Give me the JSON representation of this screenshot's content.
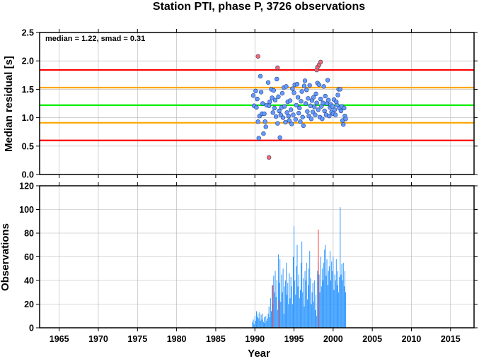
{
  "chart_data": [
    {
      "type": "scatter",
      "title": "Station PTI, phase P, 3726 observations",
      "xlabel": "",
      "ylabel": "Median residual [s]",
      "xlim": [
        1962.5,
        2018
      ],
      "ylim": [
        0,
        2.5
      ],
      "x_ticks": [
        1965,
        1970,
        1975,
        1980,
        1985,
        1990,
        1995,
        2000,
        2005,
        2010,
        2015
      ],
      "y_ticks": [
        0.0,
        0.5,
        1.0,
        1.5,
        2.0,
        2.5
      ],
      "y_tick_labels": [
        "0.0",
        "0.5",
        "1.0",
        "1.5",
        "2.0",
        "2.5"
      ],
      "grid": true,
      "annotation": "median = 1.22, smad = 0.31",
      "reference_lines": [
        {
          "y": 1.84,
          "color": "#ff0000"
        },
        {
          "y": 1.53,
          "color": "#ffa500"
        },
        {
          "y": 1.22,
          "color": "#00ee00"
        },
        {
          "y": 0.91,
          "color": "#ffa500"
        },
        {
          "y": 0.6,
          "color": "#ff0000"
        }
      ],
      "series": [
        {
          "color": "#6699ff",
          "points": [
            [
              1989.8,
              1.39
            ],
            [
              1989.9,
              1.21
            ],
            [
              1990.1,
              1.47
            ],
            [
              1990.2,
              1.18
            ],
            [
              1990.3,
              1.33
            ],
            [
              1990.4,
              0.93
            ],
            [
              1990.5,
              0.64
            ],
            [
              1990.6,
              1.03
            ],
            [
              1990.7,
              1.73
            ],
            [
              1990.8,
              1.45
            ],
            [
              1990.9,
              1.07
            ],
            [
              1991.0,
              1.25
            ],
            [
              1991.1,
              0.72
            ],
            [
              1991.2,
              1.07
            ],
            [
              1991.3,
              0.93
            ],
            [
              1991.4,
              0.84
            ],
            [
              1991.5,
              1.22
            ],
            [
              1991.7,
              1.62
            ],
            [
              1991.8,
              1.21
            ],
            [
              1991.9,
              1.28
            ],
            [
              1992.1,
              1.5
            ],
            [
              1992.2,
              1.35
            ],
            [
              1992.3,
              1.09
            ],
            [
              1992.4,
              1.48
            ],
            [
              1992.5,
              1.17
            ],
            [
              1992.6,
              1.31
            ],
            [
              1992.7,
              1.02
            ],
            [
              1992.8,
              1.68
            ],
            [
              1992.9,
              0.9
            ],
            [
              1993.0,
              1.37
            ],
            [
              1993.1,
              1.12
            ],
            [
              1993.2,
              0.65
            ],
            [
              1993.3,
              1.05
            ],
            [
              1993.4,
              1.18
            ],
            [
              1993.5,
              1.43
            ],
            [
              1993.6,
              1.0
            ],
            [
              1993.7,
              1.53
            ],
            [
              1993.8,
              1.2
            ],
            [
              1993.9,
              0.92
            ],
            [
              1994.0,
              1.55
            ],
            [
              1994.1,
              1.09
            ],
            [
              1994.2,
              1.28
            ],
            [
              1994.3,
              1.03
            ],
            [
              1994.4,
              0.95
            ],
            [
              1994.5,
              1.3
            ],
            [
              1994.6,
              1.14
            ],
            [
              1994.7,
              0.89
            ],
            [
              1994.8,
              1.51
            ],
            [
              1994.9,
              1.05
            ],
            [
              1995.0,
              1.44
            ],
            [
              1995.1,
              1.58
            ],
            [
              1995.2,
              0.97
            ],
            [
              1995.3,
              1.22
            ],
            [
              1995.4,
              1.59
            ],
            [
              1995.5,
              1.36
            ],
            [
              1995.6,
              1.08
            ],
            [
              1995.7,
              1.17
            ],
            [
              1995.8,
              0.93
            ],
            [
              1995.9,
              1.29
            ],
            [
              1996.0,
              1.46
            ],
            [
              1996.1,
              1.01
            ],
            [
              1996.2,
              0.86
            ],
            [
              1996.3,
              1.56
            ],
            [
              1996.4,
              1.65
            ],
            [
              1996.5,
              1.25
            ],
            [
              1996.6,
              1.49
            ],
            [
              1996.7,
              1.11
            ],
            [
              1996.8,
              1.34
            ],
            [
              1996.9,
              1.03
            ],
            [
              1997.0,
              1.57
            ],
            [
              1997.1,
              1.21
            ],
            [
              1997.2,
              0.98
            ],
            [
              1997.3,
              1.3
            ],
            [
              1997.4,
              1.1
            ],
            [
              1997.5,
              1.36
            ],
            [
              1997.6,
              1.19
            ],
            [
              1997.7,
              1.05
            ],
            [
              1997.8,
              1.42
            ],
            [
              1997.9,
              1.26
            ],
            [
              1998.0,
              1.61
            ],
            [
              1998.1,
              1.14
            ],
            [
              1998.2,
              1.58
            ],
            [
              1998.3,
              1.01
            ],
            [
              1998.4,
              1.33
            ],
            [
              1998.5,
              1.2
            ],
            [
              1998.6,
              0.98
            ],
            [
              1998.7,
              1.26
            ],
            [
              1998.8,
              1.55
            ],
            [
              1998.9,
              1.12
            ],
            [
              1999.0,
              1.38
            ],
            [
              1999.1,
              1.05
            ],
            [
              1999.2,
              1.25
            ],
            [
              1999.3,
              1.66
            ],
            [
              1999.4,
              1.31
            ],
            [
              1999.5,
              1.03
            ],
            [
              1999.6,
              1.18
            ],
            [
              1999.7,
              1.23
            ],
            [
              1999.8,
              1.1
            ],
            [
              1999.9,
              1.2
            ],
            [
              2000.0,
              1.07
            ],
            [
              2000.1,
              1.32
            ],
            [
              2000.2,
              1.14
            ],
            [
              2000.3,
              1.05
            ],
            [
              2000.4,
              1.28
            ],
            [
              2000.5,
              1.22
            ],
            [
              2000.6,
              1.4
            ],
            [
              2000.7,
              1.5
            ],
            [
              2000.8,
              1.17
            ],
            [
              2000.9,
              1.5
            ],
            [
              2001.0,
              1.12
            ],
            [
              2001.1,
              1.2
            ],
            [
              2001.2,
              0.95
            ],
            [
              2001.3,
              0.88
            ],
            [
              2001.4,
              1.17
            ],
            [
              2001.5,
              1.03
            ],
            [
              2001.6,
              0.98
            ]
          ]
        },
        {
          "color": "#ff6666",
          "points": [
            [
              1990.4,
              2.08
            ],
            [
              1991.8,
              0.3
            ],
            [
              1992.9,
              1.88
            ],
            [
              1997.9,
              1.84
            ],
            [
              1998.0,
              1.89
            ],
            [
              1998.2,
              1.93
            ],
            [
              1998.4,
              1.98
            ]
          ]
        }
      ]
    },
    {
      "type": "bar",
      "title": "",
      "xlabel": "Year",
      "ylabel": "Observations",
      "xlim": [
        1962.5,
        2018
      ],
      "ylim": [
        0,
        120
      ],
      "x_ticks": [
        1965,
        1970,
        1975,
        1980,
        1985,
        1990,
        1995,
        2000,
        2005,
        2010,
        2015
      ],
      "y_ticks": [
        0,
        20,
        40,
        60,
        80,
        100,
        120
      ],
      "grid": true,
      "bar_width_years": 0.085,
      "series": [
        {
          "color": "#3399ff",
          "x": [
            1989.7,
            1989.8,
            1989.9,
            1990.0,
            1990.1,
            1990.2,
            1990.3,
            1990.4,
            1990.5,
            1990.6,
            1990.7,
            1990.8,
            1990.9,
            1991.0,
            1991.1,
            1991.2,
            1991.3,
            1991.4,
            1991.5,
            1991.6,
            1991.7,
            1991.8,
            1991.9,
            1992.0,
            1992.1,
            1992.2,
            1992.3,
            1992.4,
            1992.5,
            1992.6,
            1992.7,
            1992.8,
            1992.9,
            1993.0,
            1993.1,
            1993.2,
            1993.3,
            1993.4,
            1993.5,
            1993.6,
            1993.7,
            1993.8,
            1993.9,
            1994.0,
            1994.1,
            1994.2,
            1994.3,
            1994.4,
            1994.5,
            1994.6,
            1994.7,
            1994.8,
            1994.9,
            1995.0,
            1995.1,
            1995.2,
            1995.3,
            1995.4,
            1995.5,
            1995.6,
            1995.7,
            1995.8,
            1995.9,
            1996.0,
            1996.1,
            1996.2,
            1996.3,
            1996.4,
            1996.5,
            1996.6,
            1996.7,
            1996.8,
            1996.9,
            1997.0,
            1997.1,
            1997.2,
            1997.3,
            1997.4,
            1997.5,
            1997.6,
            1997.7,
            1997.8,
            1997.9,
            1998.0,
            1998.1,
            1998.2,
            1998.3,
            1998.4,
            1998.5,
            1998.6,
            1998.7,
            1998.8,
            1998.9,
            1999.0,
            1999.1,
            1999.2,
            1999.3,
            1999.4,
            1999.5,
            1999.6,
            1999.7,
            1999.8,
            1999.9,
            2000.0,
            2000.1,
            2000.2,
            2000.3,
            2000.4,
            2000.5,
            2000.6,
            2000.7,
            2000.8,
            2000.9,
            2001.0,
            2001.1,
            2001.2,
            2001.3,
            2001.4,
            2001.5,
            2001.6
          ],
          "values": [
            5,
            7,
            3,
            10,
            6,
            14,
            9,
            12,
            8,
            13,
            6,
            11,
            7,
            12,
            5,
            9,
            4,
            10,
            6,
            8,
            12,
            18,
            9,
            25,
            14,
            36,
            20,
            44,
            30,
            48,
            26,
            40,
            15,
            62,
            38,
            58,
            22,
            45,
            30,
            50,
            12,
            35,
            40,
            55,
            28,
            38,
            20,
            46,
            25,
            43,
            35,
            20,
            60,
            86,
            40,
            28,
            52,
            70,
            35,
            45,
            25,
            32,
            55,
            73,
            30,
            42,
            18,
            48,
            40,
            55,
            24,
            36,
            50,
            65,
            42,
            20,
            30,
            38,
            22,
            40,
            15,
            28,
            10,
            48,
            56,
            45,
            30,
            60,
            35,
            50,
            40,
            55,
            66,
            70,
            44,
            58,
            36,
            48,
            52,
            65,
            40,
            56,
            48,
            60,
            32,
            45,
            40,
            58,
            36,
            48,
            30,
            43,
            102,
            45,
            54,
            40,
            55,
            35,
            48,
            30
          ]
        },
        {
          "color": "#ff3333",
          "x": [
            1992.3,
            1993.1,
            1998.1
          ],
          "values": [
            36,
            23,
            83
          ]
        }
      ]
    }
  ]
}
